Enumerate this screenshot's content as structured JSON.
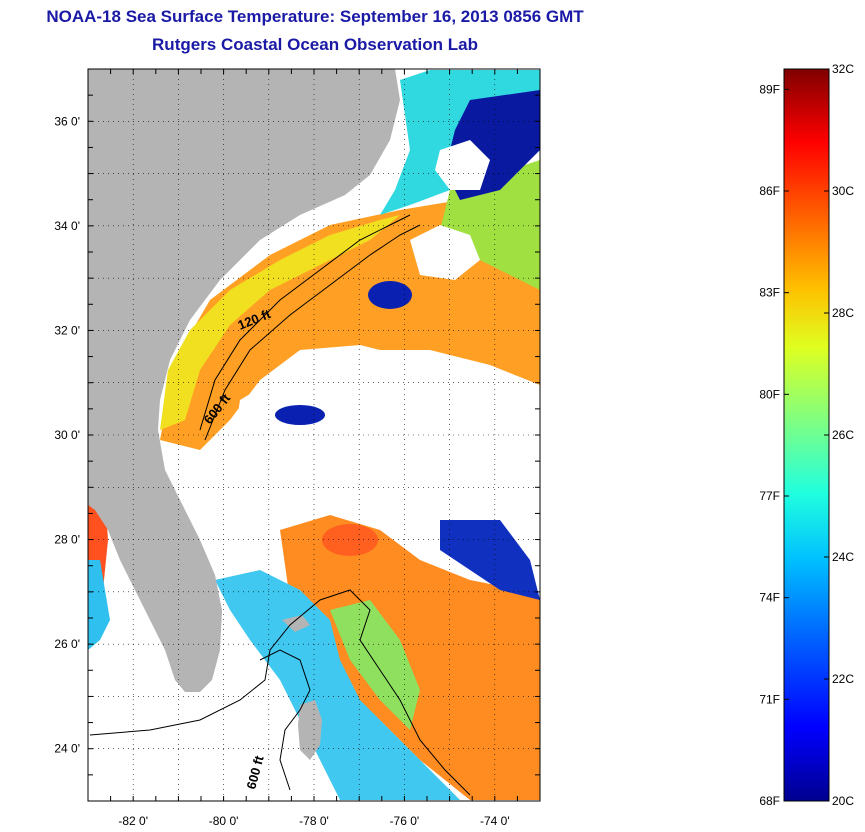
{
  "header": {
    "title": "NOAA-18 Sea Surface Temperature:  September 16, 2013 0856 GMT",
    "subtitle": "Rutgers Coastal Ocean Observation Lab"
  },
  "map": {
    "region": "Southeastern US coast and Bahamas",
    "grid": "dotted",
    "xlim": [
      -83,
      -73
    ],
    "ylim": [
      23,
      37
    ],
    "x_ticks": [
      {
        "value": -82,
        "label": "-82 0'"
      },
      {
        "value": -80,
        "label": "-80 0'"
      },
      {
        "value": -78,
        "label": "-78 0'"
      },
      {
        "value": -76,
        "label": "-76 0'"
      },
      {
        "value": -74,
        "label": "-74 0'"
      }
    ],
    "y_ticks": [
      {
        "value": 36,
        "label": "36 0'"
      },
      {
        "value": 34,
        "label": "34 0'"
      },
      {
        "value": 32,
        "label": "32 0'"
      },
      {
        "value": 30,
        "label": "30 0'"
      },
      {
        "value": 28,
        "label": "28 0'"
      },
      {
        "value": 26,
        "label": "26 0'"
      },
      {
        "value": 24,
        "label": "24 0'"
      }
    ],
    "contour_labels": [
      "120 ft",
      "600 ft",
      "600 ft"
    ],
    "colors": {
      "land": "#b4b4b4",
      "cloud": "#ffffff"
    }
  },
  "colorbar": {
    "min_c": 20,
    "max_c": 32,
    "celsius_labels": [
      "32C",
      "30C",
      "28C",
      "26C",
      "24C",
      "22C",
      "20C"
    ],
    "fahrenheit_labels": [
      "89F",
      "86F",
      "83F",
      "80F",
      "77F",
      "74F",
      "71F",
      "68F"
    ],
    "palette": [
      "#00008f",
      "#0000ff",
      "#0060ff",
      "#00c0ff",
      "#20ffdf",
      "#80ff80",
      "#dfff20",
      "#ffc000",
      "#ff6000",
      "#ff0000",
      "#c00000",
      "#800000"
    ]
  }
}
